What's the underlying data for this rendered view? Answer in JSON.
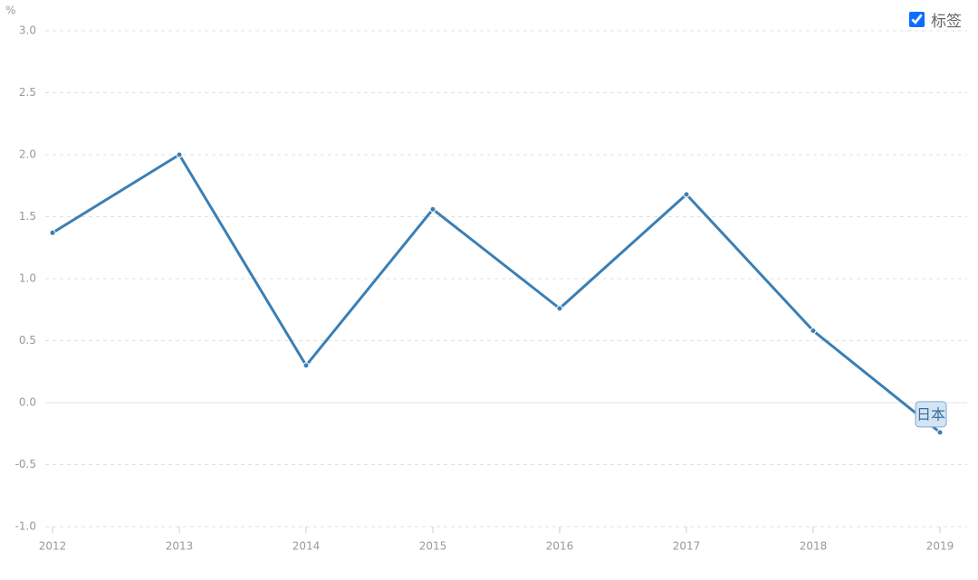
{
  "chart_data": {
    "type": "line",
    "y_unit": "%",
    "legend_toggle": "标签",
    "x": [
      2012,
      2013,
      2014,
      2015,
      2016,
      2017,
      2018,
      2019
    ],
    "xlim": [
      2012,
      2019
    ],
    "xticks": [
      2012,
      2013,
      2014,
      2015,
      2016,
      2017,
      2018,
      2019
    ],
    "ylim": [
      -1,
      3
    ],
    "yticks": [
      {
        "value": -1,
        "label": "-1.0"
      },
      -0.5,
      {
        "value": 0,
        "label": "0.0"
      },
      0.5,
      {
        "value": 1,
        "label": "1.0"
      },
      1.5,
      {
        "value": 2,
        "label": "2.0"
      },
      2.5,
      {
        "value": 3,
        "label": "3.0"
      }
    ],
    "grid": true,
    "series": [
      {
        "name": "日本",
        "color": "#3a7fb4",
        "values": [
          1.37,
          2.0,
          0.3,
          1.56,
          0.76,
          1.68,
          0.58,
          -0.24
        ]
      }
    ]
  }
}
